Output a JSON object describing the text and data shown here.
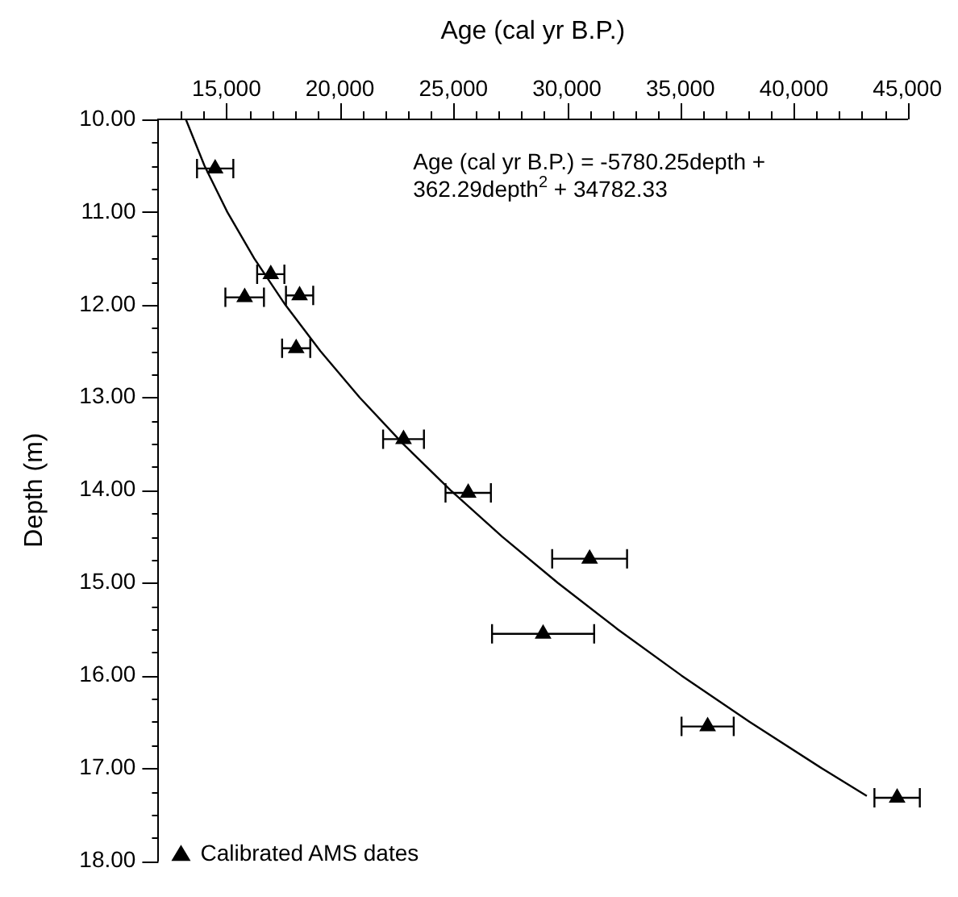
{
  "chart_data": {
    "type": "scatter",
    "xlabel": "Age (cal yr B.P.)",
    "ylabel": "Depth (m)",
    "xlim": [
      12000,
      45000
    ],
    "xticks": [
      {
        "value": 13000,
        "label": null
      },
      {
        "value": 14000,
        "label": null
      },
      {
        "value": 15000,
        "label": "15,000"
      },
      {
        "value": 16000,
        "label": null
      },
      {
        "value": 17000,
        "label": null
      },
      {
        "value": 18000,
        "label": null
      },
      {
        "value": 19000,
        "label": null
      },
      {
        "value": 20000,
        "label": "20,000"
      },
      {
        "value": 21000,
        "label": null
      },
      {
        "value": 22000,
        "label": null
      },
      {
        "value": 23000,
        "label": null
      },
      {
        "value": 24000,
        "label": null
      },
      {
        "value": 25000,
        "label": "25,000"
      },
      {
        "value": 26000,
        "label": null
      },
      {
        "value": 27000,
        "label": null
      },
      {
        "value": 28000,
        "label": null
      },
      {
        "value": 29000,
        "label": null
      },
      {
        "value": 30000,
        "label": "30,000"
      },
      {
        "value": 31000,
        "label": null
      },
      {
        "value": 32000,
        "label": null
      },
      {
        "value": 33000,
        "label": null
      },
      {
        "value": 34000,
        "label": null
      },
      {
        "value": 35000,
        "label": "35,000"
      },
      {
        "value": 36000,
        "label": null
      },
      {
        "value": 37000,
        "label": null
      },
      {
        "value": 38000,
        "label": null
      },
      {
        "value": 39000,
        "label": null
      },
      {
        "value": 40000,
        "label": "40,000"
      },
      {
        "value": 41000,
        "label": null
      },
      {
        "value": 42000,
        "label": null
      },
      {
        "value": 43000,
        "label": null
      },
      {
        "value": 44000,
        "label": null
      },
      {
        "value": 45000,
        "label": "45,000"
      }
    ],
    "ylim": [
      18,
      10
    ],
    "yticks": [
      {
        "value": 10,
        "label": "10.00"
      },
      {
        "value": 10.25,
        "label": null
      },
      {
        "value": 10.5,
        "label": null
      },
      {
        "value": 10.75,
        "label": null
      },
      {
        "value": 11,
        "label": "11.00"
      },
      {
        "value": 11.25,
        "label": null
      },
      {
        "value": 11.5,
        "label": null
      },
      {
        "value": 11.75,
        "label": null
      },
      {
        "value": 12,
        "label": "12.00"
      },
      {
        "value": 12.25,
        "label": null
      },
      {
        "value": 12.5,
        "label": null
      },
      {
        "value": 12.75,
        "label": null
      },
      {
        "value": 13,
        "label": "13.00"
      },
      {
        "value": 13.25,
        "label": null
      },
      {
        "value": 13.5,
        "label": null
      },
      {
        "value": 13.75,
        "label": null
      },
      {
        "value": 14,
        "label": "14.00"
      },
      {
        "value": 14.25,
        "label": null
      },
      {
        "value": 14.5,
        "label": null
      },
      {
        "value": 14.75,
        "label": null
      },
      {
        "value": 15,
        "label": "15.00"
      },
      {
        "value": 15.25,
        "label": null
      },
      {
        "value": 15.5,
        "label": null
      },
      {
        "value": 15.75,
        "label": null
      },
      {
        "value": 16,
        "label": "16.00"
      },
      {
        "value": 16.25,
        "label": null
      },
      {
        "value": 16.5,
        "label": null
      },
      {
        "value": 16.75,
        "label": null
      },
      {
        "value": 17,
        "label": "17.00"
      },
      {
        "value": 17.25,
        "label": null
      },
      {
        "value": 17.5,
        "label": null
      },
      {
        "value": 17.75,
        "label": null
      },
      {
        "value": 18,
        "label": "18.00"
      }
    ],
    "grid": false,
    "legend": "bottom left",
    "series": [
      {
        "name": "Calibrated AMS dates",
        "marker": "triangle",
        "color": "#000000",
        "x": [
          14500,
          16950,
          15800,
          18220,
          18070,
          22800,
          25650,
          31000,
          28950,
          36200,
          44550
        ],
        "values": [
          10.53,
          11.67,
          11.92,
          11.9,
          12.47,
          13.45,
          14.03,
          14.74,
          15.55,
          16.55,
          17.32
        ],
        "xerrors": [
          800,
          600,
          850,
          600,
          620,
          900,
          1000,
          1650,
          2250,
          1150,
          1000
        ]
      },
      {
        "type": "line",
        "marker": "none",
        "line_style": "solid",
        "color": "#000000",
        "x": [
          13209,
          14030,
          15036,
          16222,
          17589,
          19137,
          20866,
          22776,
          24868,
          27140,
          29594,
          32229,
          35045,
          38042,
          41220,
          43214
        ],
        "values": [
          10,
          10.5,
          11,
          11.5,
          12,
          12.5,
          13,
          13.5,
          14,
          14.5,
          15,
          15.5,
          16,
          16.5,
          17,
          17.3
        ]
      }
    ],
    "annotations": [
      "Age (cal yr B.P.) = -5780.25depth + 362.29depth$^{2}$ + 34782.33"
    ]
  }
}
